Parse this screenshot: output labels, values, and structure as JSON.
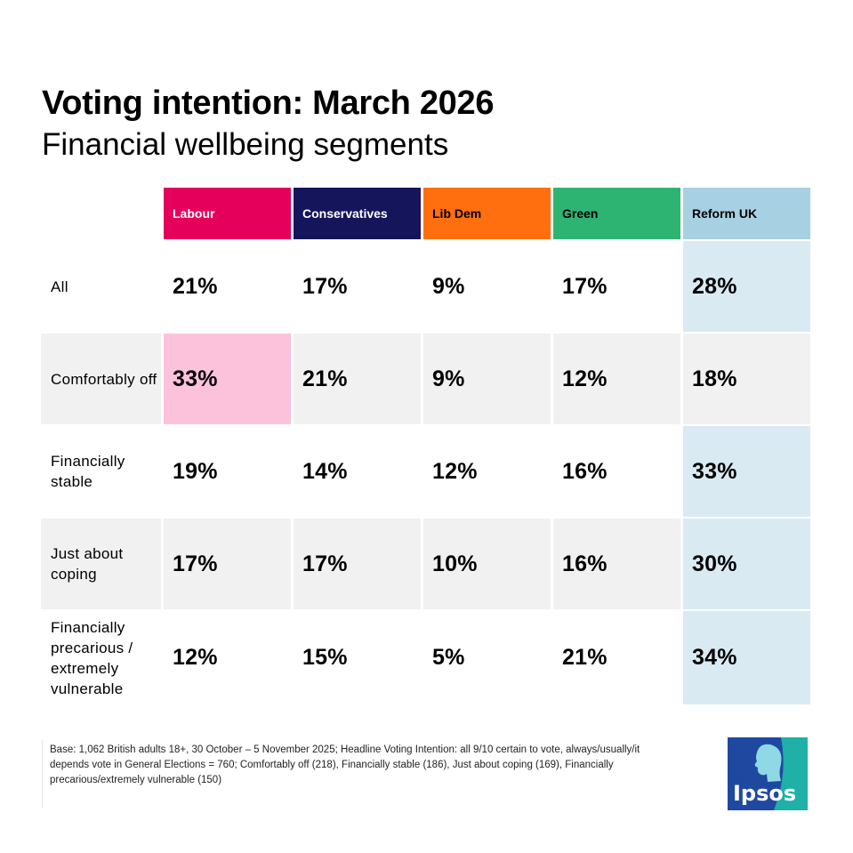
{
  "title": "Voting intention: March 2026",
  "subtitle": "Financial wellbeing segments",
  "colors": {
    "labour": "#e5005c",
    "conservatives": "#15155c",
    "libdem": "#ff6f0f",
    "green": "#2eb472",
    "reform": "#a8d0e3",
    "reform_light": "#daeaf3",
    "highlight_pink": "#fcc2dc",
    "row_grey": "#f1f1f1",
    "white": "#ffffff"
  },
  "chart_data": {
    "type": "table",
    "title": "Voting intention: March 2026",
    "subtitle": "Financial wellbeing segments",
    "columns": [
      "Labour",
      "Conservatives",
      "Lib Dem",
      "Green",
      "Reform UK"
    ],
    "rows": [
      {
        "label": "All",
        "values": [
          "21%",
          "17%",
          "9%",
          "17%",
          "28%"
        ]
      },
      {
        "label": "Comfortably off",
        "values": [
          "33%",
          "21%",
          "9%",
          "12%",
          "18%"
        ]
      },
      {
        "label": "Financially stable",
        "values": [
          "19%",
          "14%",
          "12%",
          "16%",
          "33%"
        ]
      },
      {
        "label": "Just about coping",
        "values": [
          "17%",
          "17%",
          "10%",
          "16%",
          "30%"
        ]
      },
      {
        "label": "Financially precarious / extremely vulnerable",
        "values": [
          "12%",
          "15%",
          "5%",
          "21%",
          "34%"
        ]
      }
    ],
    "highlight": "Largest party in each row; Comfortably off highlights Labour, other rows highlight Reform UK"
  },
  "footnote": "Base: 1,062 British adults 18+, 30 October – 5 November 2025; Headline Voting Intention:  all 9/10 certain to vote, always/usually/it depends vote in General Elections = 760; Comfortably off (218), Financially stable (186),  Just about coping (169), Financially precarious/extremely vulnerable (150)",
  "logo": {
    "text": "Ipsos",
    "icon": "ipsos-head-silhouette-logo"
  }
}
